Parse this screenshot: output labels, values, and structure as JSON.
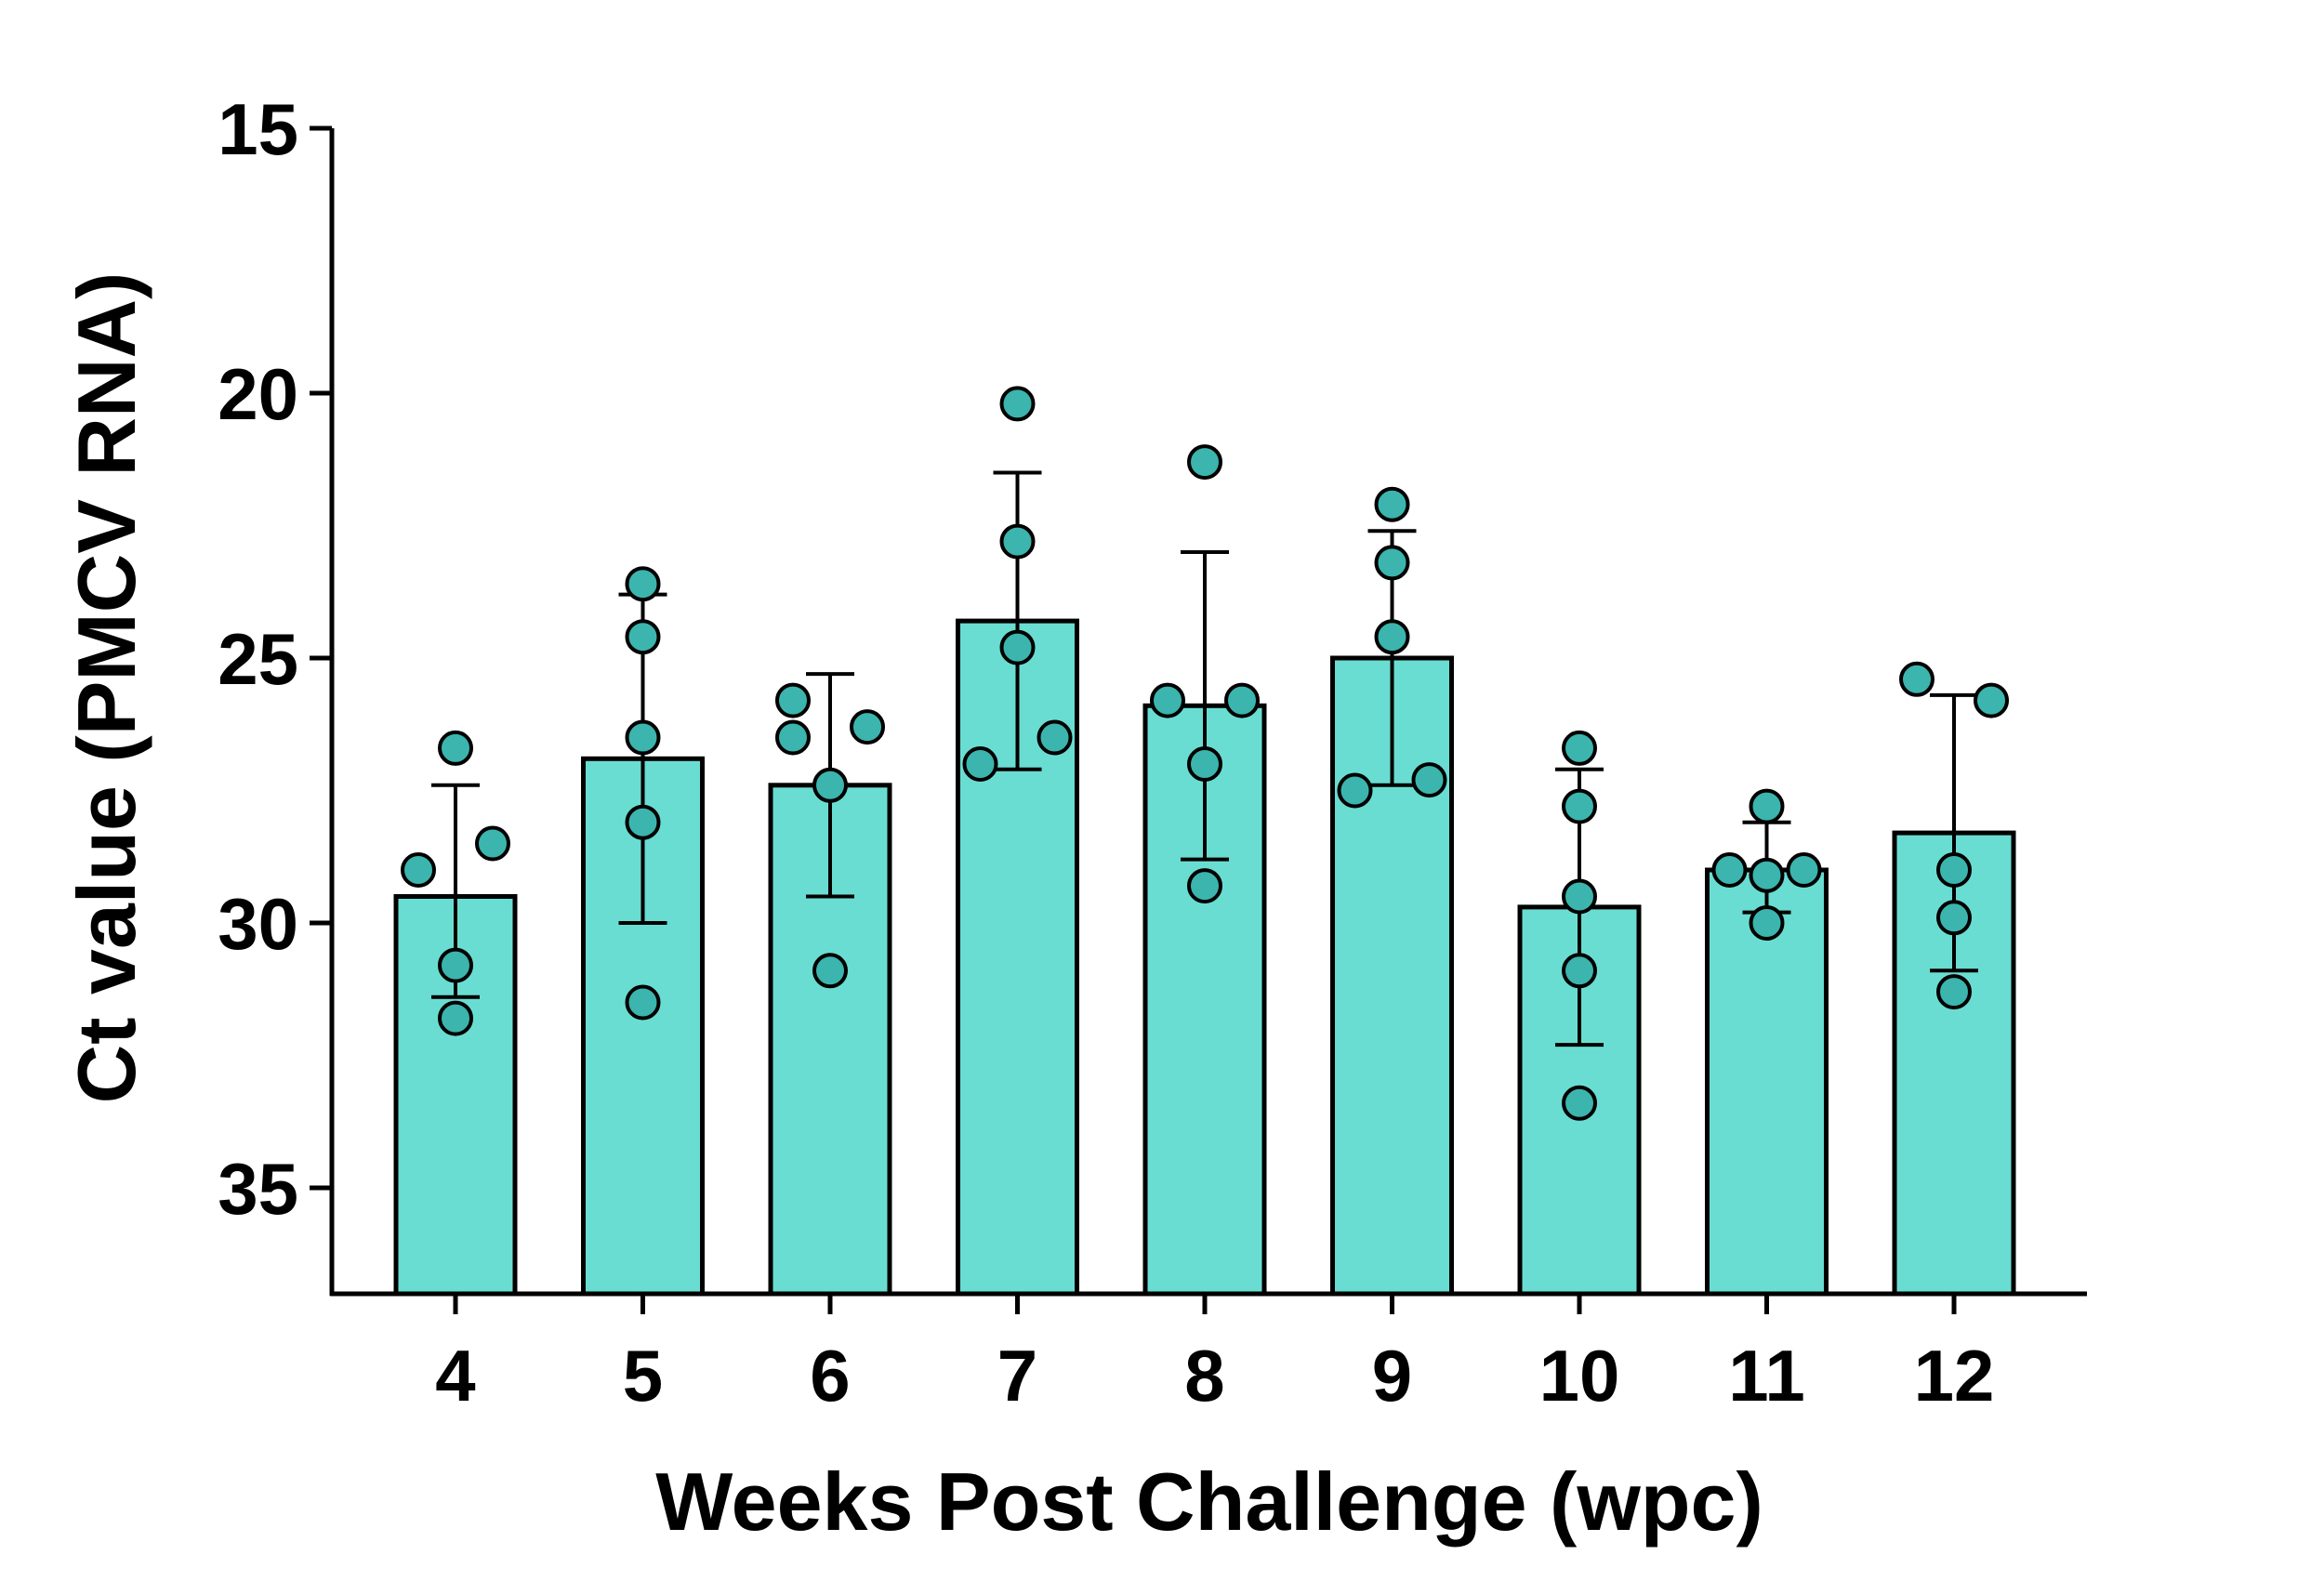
{
  "chart_data": {
    "type": "bar",
    "title": "",
    "xlabel": "Weeks Post Challenge (wpc)",
    "ylabel": "Ct value (PMCV RNA)",
    "y_axis_inverted": true,
    "ylim": [
      15,
      37
    ],
    "yticks": [
      15,
      20,
      25,
      30,
      35
    ],
    "grid": false,
    "legend": "none",
    "bar_fill": "#6ADDD2",
    "point_fill": "#3BB5AE",
    "stroke": "#000000",
    "categories": [
      "4",
      "5",
      "6",
      "7",
      "8",
      "9",
      "10",
      "11",
      "12"
    ],
    "values": [
      29.5,
      26.9,
      27.4,
      24.3,
      25.9,
      25.0,
      29.7,
      29.0,
      28.3
    ],
    "error_low": [
      27.4,
      23.8,
      25.3,
      21.5,
      23.0,
      22.6,
      27.1,
      28.1,
      25.7
    ],
    "error_high": [
      31.4,
      30.0,
      29.5,
      27.1,
      28.8,
      27.4,
      32.3,
      29.8,
      30.9
    ],
    "points": [
      [
        {
          "dx": -0.4,
          "y": 29.0
        },
        {
          "dx": 0.0,
          "y": 30.8
        },
        {
          "dx": 0.0,
          "y": 31.8
        },
        {
          "dx": 0.0,
          "y": 26.7
        },
        {
          "dx": 0.4,
          "y": 28.5
        }
      ],
      [
        {
          "dx": 0.0,
          "y": 23.6
        },
        {
          "dx": 0.0,
          "y": 24.6
        },
        {
          "dx": 0.0,
          "y": 26.5
        },
        {
          "dx": 0.0,
          "y": 28.1
        },
        {
          "dx": 0.0,
          "y": 31.5
        }
      ],
      [
        {
          "dx": -0.4,
          "y": 25.8
        },
        {
          "dx": -0.4,
          "y": 26.5
        },
        {
          "dx": 0.0,
          "y": 27.4
        },
        {
          "dx": 0.4,
          "y": 26.3
        },
        {
          "dx": 0.0,
          "y": 30.9
        }
      ],
      [
        {
          "dx": 0.0,
          "y": 20.2
        },
        {
          "dx": 0.0,
          "y": 22.8
        },
        {
          "dx": 0.0,
          "y": 24.8
        },
        {
          "dx": -0.4,
          "y": 27.0
        },
        {
          "dx": 0.4,
          "y": 26.5
        }
      ],
      [
        {
          "dx": 0.0,
          "y": 21.3
        },
        {
          "dx": -0.4,
          "y": 25.8
        },
        {
          "dx": 0.4,
          "y": 25.8
        },
        {
          "dx": 0.0,
          "y": 27.0
        },
        {
          "dx": 0.0,
          "y": 29.3
        }
      ],
      [
        {
          "dx": 0.0,
          "y": 22.1
        },
        {
          "dx": 0.0,
          "y": 23.2
        },
        {
          "dx": 0.0,
          "y": 24.6
        },
        {
          "dx": -0.4,
          "y": 27.5
        },
        {
          "dx": 0.4,
          "y": 27.3
        }
      ],
      [
        {
          "dx": 0.0,
          "y": 26.7
        },
        {
          "dx": 0.0,
          "y": 27.8
        },
        {
          "dx": 0.0,
          "y": 29.5
        },
        {
          "dx": 0.0,
          "y": 30.9
        },
        {
          "dx": 0.0,
          "y": 33.4
        }
      ],
      [
        {
          "dx": 0.0,
          "y": 27.8
        },
        {
          "dx": -0.4,
          "y": 29.0
        },
        {
          "dx": 0.0,
          "y": 29.1
        },
        {
          "dx": 0.4,
          "y": 29.0
        },
        {
          "dx": 0.0,
          "y": 30.0
        }
      ],
      [
        {
          "dx": -0.4,
          "y": 25.4
        },
        {
          "dx": 0.4,
          "y": 25.8
        },
        {
          "dx": 0.0,
          "y": 29.0
        },
        {
          "dx": 0.0,
          "y": 29.9
        },
        {
          "dx": 0.0,
          "y": 31.3
        }
      ]
    ]
  }
}
